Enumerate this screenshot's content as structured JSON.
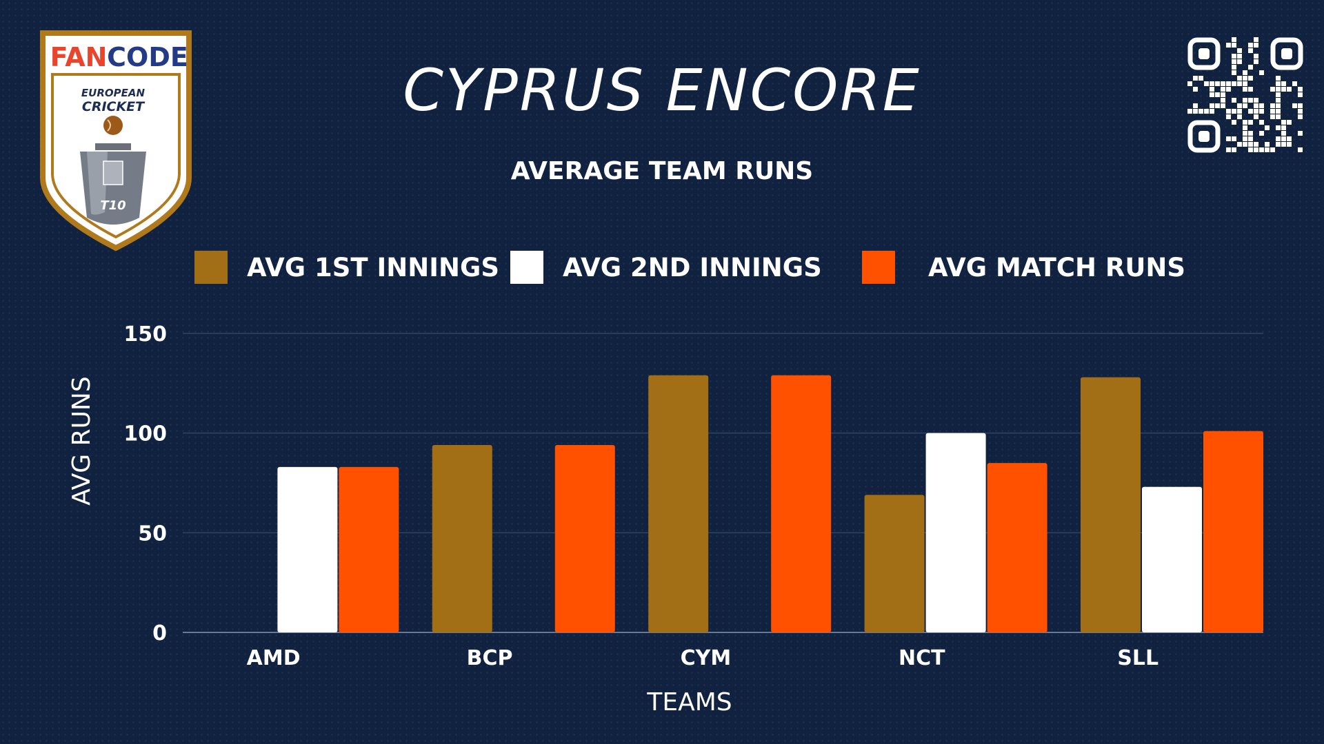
{
  "header": {
    "title": "CYPRUS ENCORE",
    "subtitle": "AVERAGE TEAM RUNS"
  },
  "logo": {
    "brand_left": "FAN",
    "brand_right": "CODE",
    "line1": "EUROPEAN",
    "line2": "CRICKET",
    "format": "T10"
  },
  "colors": {
    "background": "#10223f",
    "first_innings": "#a26e16",
    "second_innings": "#ffffff",
    "match_runs": "#ff5100",
    "gridline": "#2f4466"
  },
  "icons": {
    "qr": "qr-code-icon",
    "logo": "fancode-european-cricket-t10-shield-icon"
  },
  "chart_data": {
    "type": "bar",
    "xlabel": "TEAMS",
    "ylabel": "AVG RUNS",
    "ylim": [
      0,
      150
    ],
    "yticks": [
      0,
      50,
      100,
      150
    ],
    "grid": true,
    "legend_position": "top",
    "categories": [
      "AMD",
      "BCP",
      "CYM",
      "NCT",
      "SLL"
    ],
    "series": [
      {
        "name": "AVG 1ST INNINGS",
        "color": "#a26e16",
        "values": [
          0,
          94,
          129,
          69,
          128
        ]
      },
      {
        "name": "AVG 2ND INNINGS",
        "color": "#ffffff",
        "values": [
          83,
          0,
          0,
          100,
          73
        ]
      },
      {
        "name": "AVG MATCH RUNS",
        "color": "#ff5100",
        "values": [
          83,
          94,
          129,
          85,
          101
        ]
      }
    ]
  }
}
